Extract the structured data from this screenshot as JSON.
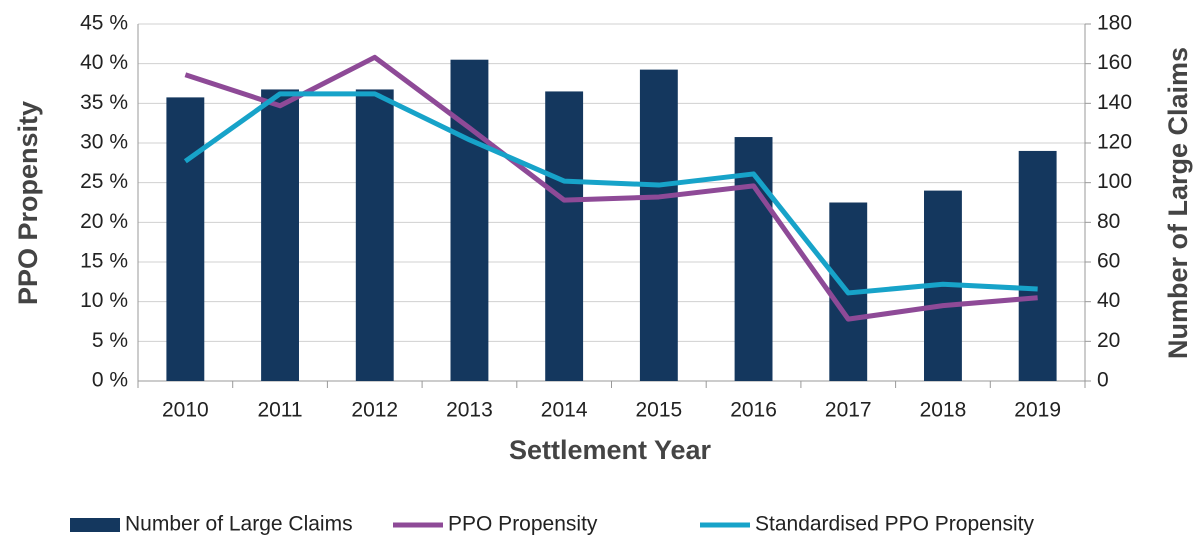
{
  "chart_data": {
    "type": "bar_line",
    "xlabel": "Settlement Year",
    "ylabel": "PPO Propensity",
    "y2label": "Number of Large Claims",
    "categories": [
      "2010",
      "2011",
      "2012",
      "2013",
      "2014",
      "2015",
      "2016",
      "2017",
      "2018",
      "2019"
    ],
    "series": [
      {
        "name": "Number of Large Claims",
        "type": "bar",
        "axis": "y2",
        "color": "#14375e",
        "values": [
          143,
          147,
          147,
          162,
          146,
          157,
          123,
          90,
          96,
          116
        ]
      },
      {
        "name": "PPO Propensity",
        "type": "line",
        "color": "#8e4a97",
        "values": [
          38.6,
          34.7,
          40.8,
          31.9,
          22.8,
          23.2,
          24.6,
          7.8,
          9.5,
          10.5
        ]
      },
      {
        "name": "Standardised PPO Propensity",
        "type": "line",
        "color": "#17a3c9",
        "values": [
          27.7,
          36.2,
          36.2,
          30.4,
          25.2,
          24.7,
          26.1,
          11.1,
          12.2,
          11.6
        ]
      }
    ],
    "ylim": [
      0,
      45
    ],
    "yticks": [
      {
        "value": 0,
        "label": "0 %"
      },
      {
        "value": 5,
        "label": "5 %"
      },
      {
        "value": 10,
        "label": "10 %"
      },
      {
        "value": 15,
        "label": "15 %"
      },
      {
        "value": 20,
        "label": "20 %"
      },
      {
        "value": 25,
        "label": "25 %"
      },
      {
        "value": 30,
        "label": "30 %"
      },
      {
        "value": 35,
        "label": "35 %"
      },
      {
        "value": 40,
        "label": "40 %"
      },
      {
        "value": 45,
        "label": "45 %"
      }
    ],
    "y2lim": [
      0,
      180
    ],
    "y2ticks": [
      0,
      20,
      40,
      60,
      80,
      100,
      120,
      140,
      160,
      180
    ],
    "grid": true,
    "legend": "bottom"
  }
}
